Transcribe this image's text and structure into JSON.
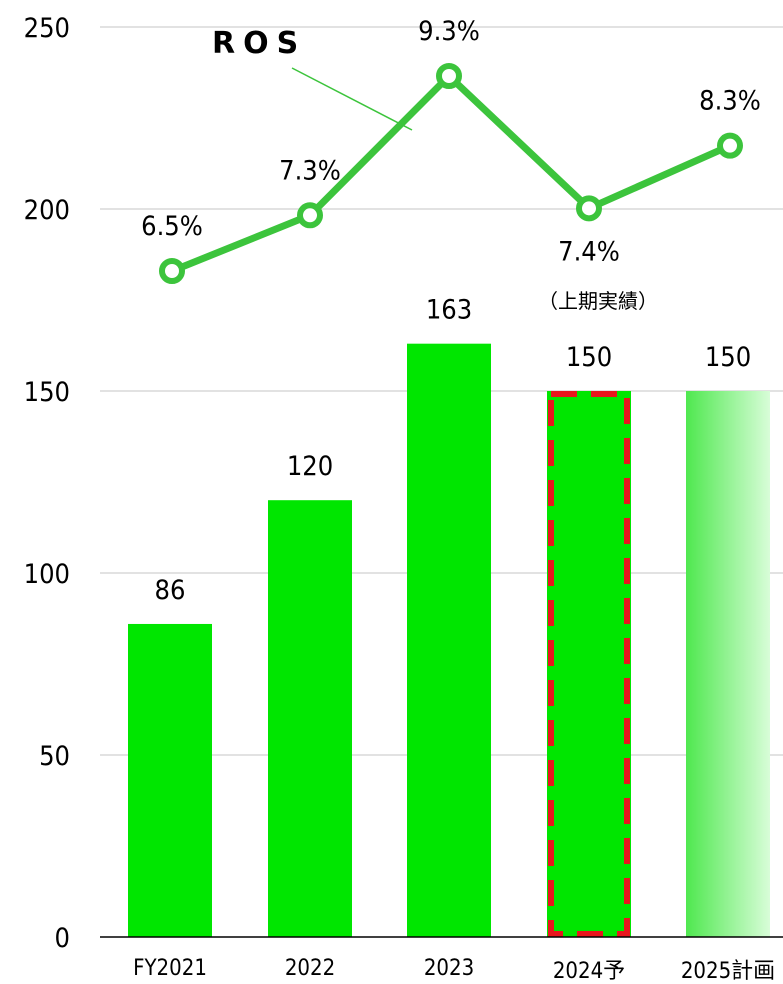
{
  "chart_data": {
    "type": "bar",
    "categories": [
      "FY2021",
      "2022",
      "2023",
      "2024予",
      "2025計画"
    ],
    "ylim": [
      0,
      250
    ],
    "yticks": [
      0,
      50,
      100,
      150,
      200,
      250
    ],
    "series": [
      {
        "values": [
          86,
          120,
          163,
          150,
          150
        ],
        "data_labels": [
          "86",
          "120",
          "163",
          "150",
          "150"
        ],
        "color": "#00e600"
      }
    ],
    "line_series": {
      "name": "ROS",
      "values": [
        6.5,
        7.3,
        9.3,
        7.4,
        8.3
      ],
      "labels": [
        "6.5%",
        "7.3%",
        "9.3%",
        "7.4%",
        "8.3%"
      ],
      "color": "#3cc43c"
    },
    "annotations": {
      "ros_title": "ROS",
      "h1_note": "（上期実績）"
    },
    "highlight_category": "2024予",
    "highlight_color": "#e8161d",
    "plan_gradient": [
      "#4fe84f",
      "#d8fdd8"
    ],
    "grid": true
  }
}
